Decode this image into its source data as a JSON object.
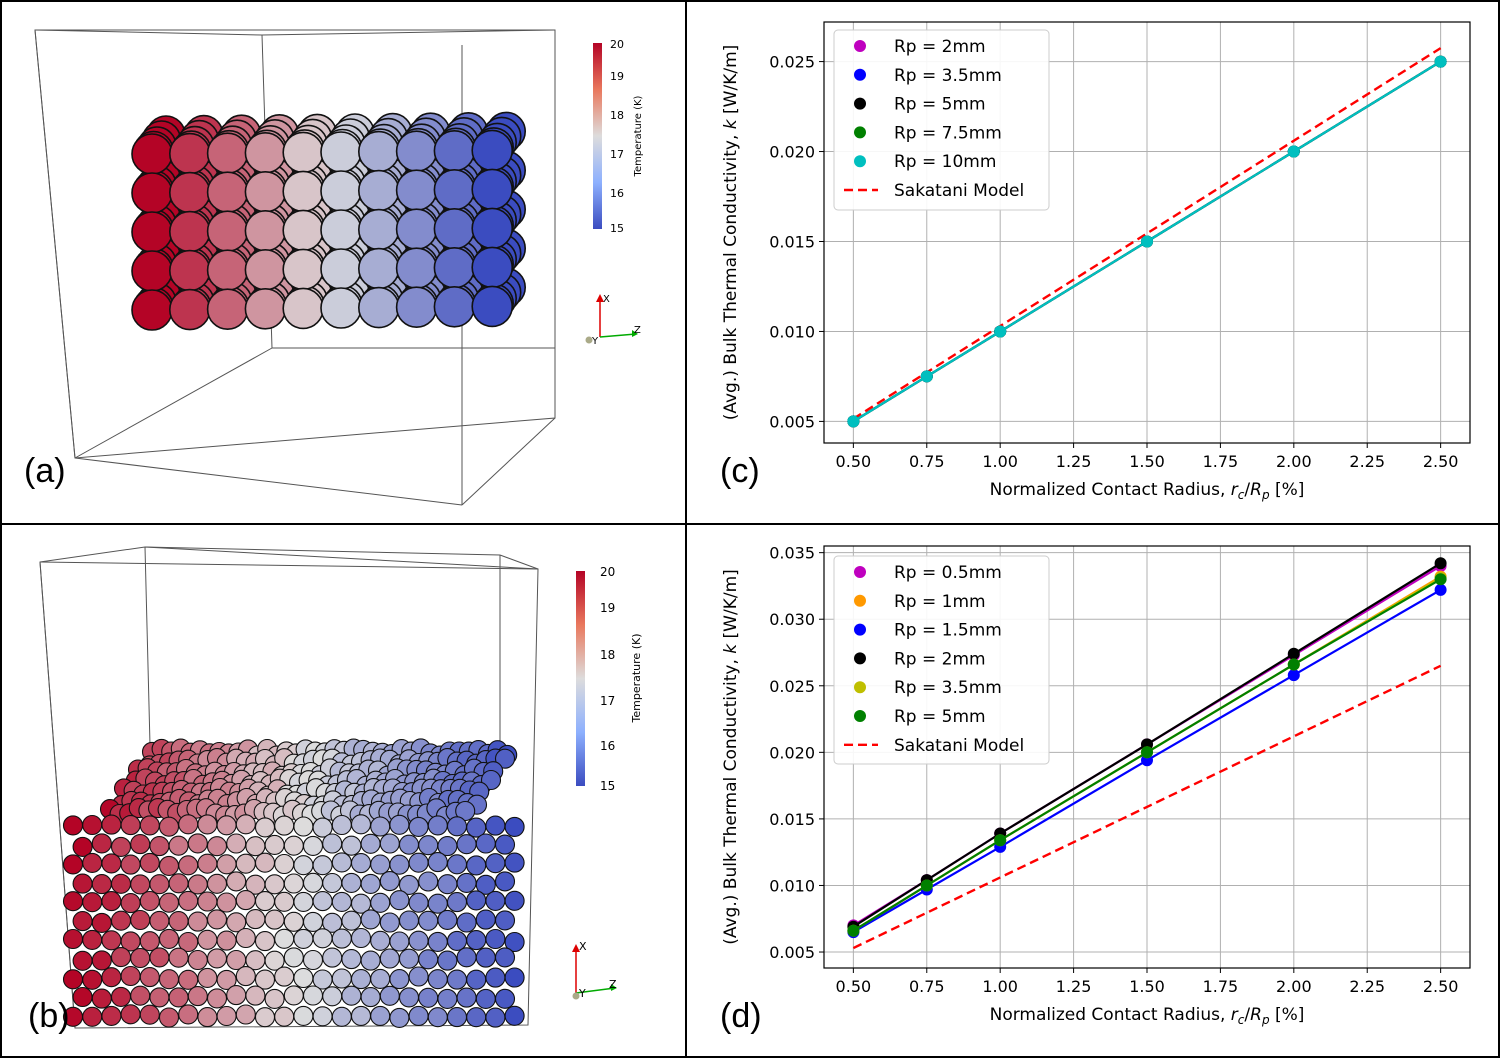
{
  "panels": {
    "a": {
      "letter": "(a)",
      "colorbar": {
        "title": "Temperature (K)",
        "ticks": [
          "20",
          "19",
          "18",
          "17",
          "16",
          "15"
        ]
      },
      "axes": {
        "x": "X",
        "y": "Y",
        "z": "Z"
      }
    },
    "b": {
      "letter": "(b)",
      "colorbar": {
        "title": "Temperature (K)",
        "ticks": [
          "20",
          "19",
          "18",
          "17",
          "16",
          "15"
        ]
      },
      "axes": {
        "x": "X",
        "y": "Y",
        "z": "Z"
      }
    },
    "c": {
      "letter": "(c)"
    },
    "d": {
      "letter": "(d)"
    }
  },
  "colors": {
    "hot": "#b40426",
    "mid": "#dddddd",
    "cold": "#3b4cc0"
  },
  "chart_data": [
    {
      "id": "c",
      "type": "line",
      "xlabel": "Normalized Contact Radius, r_c/R_p [%]",
      "ylabel": "(Avg.) Bulk Thermal Conductivity, k [W/K/m]",
      "xlim": [
        0.4,
        2.6
      ],
      "ylim": [
        0.0038,
        0.0272
      ],
      "xticks": [
        "0.50",
        "0.75",
        "1.00",
        "1.25",
        "1.50",
        "1.75",
        "2.00",
        "2.25",
        "2.50"
      ],
      "yticks": [
        "0.005",
        "0.010",
        "0.015",
        "0.020",
        "0.025"
      ],
      "grid": true,
      "legend_position": "top-left",
      "x": [
        0.5,
        0.75,
        1.0,
        1.5,
        2.0,
        2.5
      ],
      "series": [
        {
          "name": "Rp = 2mm",
          "color": "#bf00bf",
          "values": [
            0.005,
            0.0075,
            0.01,
            0.015,
            0.02,
            0.025
          ]
        },
        {
          "name": "Rp = 3.5mm",
          "color": "#0000ff",
          "values": [
            0.005,
            0.0075,
            0.01,
            0.015,
            0.02,
            0.025
          ]
        },
        {
          "name": "Rp = 5mm",
          "color": "#000000",
          "values": [
            0.005,
            0.0075,
            0.01,
            0.015,
            0.02,
            0.025
          ]
        },
        {
          "name": "Rp = 7.5mm",
          "color": "#008000",
          "values": [
            0.005,
            0.0075,
            0.01,
            0.015,
            0.02,
            0.025
          ]
        },
        {
          "name": "Rp = 10mm",
          "color": "#00bfbf",
          "values": [
            0.005,
            0.0075,
            0.01,
            0.015,
            0.02,
            0.025
          ]
        }
      ],
      "model": {
        "name": "Sakatani Model",
        "color": "#ff0000",
        "x": [
          0.5,
          2.5
        ],
        "values": [
          0.00515,
          0.02575
        ]
      }
    },
    {
      "id": "d",
      "type": "line",
      "xlabel": "Normalized Contact Radius, r_c/R_p [%]",
      "ylabel": "(Avg.) Bulk Thermal Conductivity, k [W/K/m]",
      "xlim": [
        0.4,
        2.6
      ],
      "ylim": [
        0.0038,
        0.0355
      ],
      "xticks": [
        "0.50",
        "0.75",
        "1.00",
        "1.25",
        "1.50",
        "1.75",
        "2.00",
        "2.25",
        "2.50"
      ],
      "yticks": [
        "0.005",
        "0.010",
        "0.015",
        "0.020",
        "0.025",
        "0.030",
        "0.035"
      ],
      "grid": true,
      "legend_position": "top-left",
      "x": [
        0.5,
        0.75,
        1.0,
        1.5,
        2.0,
        2.5
      ],
      "series": [
        {
          "name": "Rp = 0.5mm",
          "color": "#bf00bf",
          "values": [
            0.007,
            0.0104,
            0.0139,
            0.0206,
            0.0273,
            0.034
          ]
        },
        {
          "name": "Rp = 1mm",
          "color": "#ff9900",
          "values": [
            0.0066,
            0.01,
            0.0134,
            0.02,
            0.0266,
            0.0332
          ]
        },
        {
          "name": "Rp = 1.5mm",
          "color": "#0000ff",
          "values": [
            0.0065,
            0.0097,
            0.0129,
            0.0194,
            0.0258,
            0.0322
          ]
        },
        {
          "name": "Rp = 2mm",
          "color": "#000000",
          "values": [
            0.0069,
            0.0104,
            0.0139,
            0.0206,
            0.0274,
            0.0342
          ]
        },
        {
          "name": "Rp = 3.5mm",
          "color": "#bfbf00",
          "values": [
            0.0066,
            0.01,
            0.0134,
            0.02,
            0.0266,
            0.0331
          ]
        },
        {
          "name": "Rp = 5mm",
          "color": "#008000",
          "values": [
            0.0066,
            0.01,
            0.0134,
            0.02,
            0.0266,
            0.033
          ]
        }
      ],
      "model": {
        "name": "Sakatani Model",
        "color": "#ff0000",
        "x": [
          0.5,
          2.5
        ],
        "values": [
          0.0053,
          0.0265
        ]
      }
    }
  ]
}
